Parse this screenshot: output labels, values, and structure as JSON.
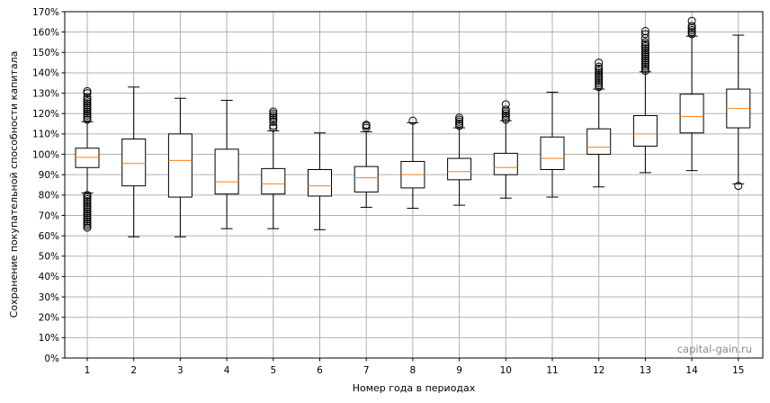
{
  "chart_data": {
    "type": "box",
    "xlabel": "Номер года в периодах",
    "ylabel": "Сохранение покупательной способности капитала",
    "watermark": "capital-gain.ru",
    "ylim": [
      0,
      170
    ],
    "y_ticks": [
      0,
      10,
      20,
      30,
      40,
      50,
      60,
      70,
      80,
      90,
      100,
      110,
      120,
      130,
      140,
      150,
      160,
      170
    ],
    "y_tick_suffix": "%",
    "grid": true,
    "colors": {
      "box": "#000000",
      "median": "#ff7f0e",
      "grid": "#b0b0b0",
      "watermark": "#8a8a8a"
    },
    "categories": [
      "1",
      "2",
      "3",
      "4",
      "5",
      "6",
      "7",
      "8",
      "9",
      "10",
      "11",
      "12",
      "13",
      "14",
      "15"
    ],
    "boxes": [
      {
        "label": "1",
        "whisker_low": 81,
        "q1": 93.5,
        "median": 98.5,
        "q3": 103,
        "whisker_high": 116,
        "outliers": [
          64,
          65,
          66,
          67,
          68,
          69,
          70,
          71,
          72,
          73,
          74,
          75,
          76,
          77,
          78,
          79,
          80,
          80,
          117,
          118,
          119,
          120,
          121,
          122,
          123,
          124,
          125,
          126,
          127,
          128,
          130,
          131
        ]
      },
      {
        "label": "2",
        "whisker_low": 59.5,
        "q1": 84.5,
        "median": 95.5,
        "q3": 107.5,
        "whisker_high": 133,
        "outliers": []
      },
      {
        "label": "3",
        "whisker_low": 59.5,
        "q1": 79,
        "median": 97,
        "q3": 110,
        "whisker_high": 127.5,
        "outliers": []
      },
      {
        "label": "4",
        "whisker_low": 63.5,
        "q1": 80.5,
        "median": 86.5,
        "q3": 102.5,
        "whisker_high": 126.5,
        "outliers": []
      },
      {
        "label": "5",
        "whisker_low": 63.5,
        "q1": 80.5,
        "median": 85.5,
        "q3": 93,
        "whisker_high": 111.5,
        "outliers": [
          113,
          114,
          116,
          117,
          118,
          119,
          120,
          121
        ]
      },
      {
        "label": "6",
        "whisker_low": 63,
        "q1": 79.5,
        "median": 84.5,
        "q3": 92.5,
        "whisker_high": 110.5,
        "outliers": []
      },
      {
        "label": "7",
        "whisker_low": 74,
        "q1": 81.5,
        "median": 88.5,
        "q3": 94,
        "whisker_high": 111,
        "outliers": [
          113,
          114,
          114.5
        ]
      },
      {
        "label": "8",
        "whisker_low": 73.5,
        "q1": 83.5,
        "median": 90,
        "q3": 96.5,
        "whisker_high": 115.5,
        "outliers": [
          116.5
        ]
      },
      {
        "label": "9",
        "whisker_low": 75,
        "q1": 87.5,
        "median": 91.5,
        "q3": 98,
        "whisker_high": 113,
        "outliers": [
          114,
          115,
          116,
          117,
          118
        ]
      },
      {
        "label": "10",
        "whisker_low": 78.5,
        "q1": 90,
        "median": 93.5,
        "q3": 100.5,
        "whisker_high": 116.5,
        "outliers": [
          117,
          118,
          119,
          120,
          121,
          122,
          124.5
        ]
      },
      {
        "label": "11",
        "whisker_low": 79,
        "q1": 92.5,
        "median": 98,
        "q3": 108.5,
        "whisker_high": 130.5,
        "outliers": []
      },
      {
        "label": "12",
        "whisker_low": 84,
        "q1": 100,
        "median": 103.5,
        "q3": 112.5,
        "whisker_high": 132,
        "outliers": [
          133,
          134,
          135,
          136,
          137,
          138,
          139,
          140,
          141,
          142,
          143,
          145
        ]
      },
      {
        "label": "13",
        "whisker_low": 91,
        "q1": 104,
        "median": 110,
        "q3": 119,
        "whisker_high": 140.5,
        "outliers": [
          141,
          142,
          143,
          144,
          145,
          146,
          147,
          148,
          149,
          150,
          151,
          152,
          153,
          154,
          155,
          157,
          159,
          160.5
        ]
      },
      {
        "label": "14",
        "whisker_low": 92,
        "q1": 110.5,
        "median": 118.5,
        "q3": 129.5,
        "whisker_high": 158,
        "outliers": [
          159,
          160,
          161,
          162,
          163,
          165.5
        ]
      },
      {
        "label": "15",
        "whisker_low": 85.5,
        "q1": 113,
        "median": 122.5,
        "q3": 132,
        "whisker_high": 158.5,
        "outliers": [
          84.5
        ]
      }
    ]
  }
}
